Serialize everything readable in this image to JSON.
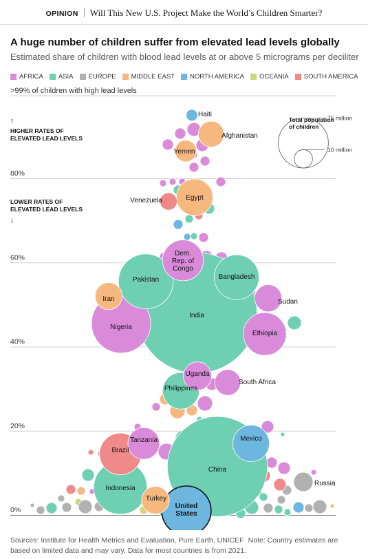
{
  "header": {
    "section": "OPINION",
    "headline": "Will This New U.S. Project Make the World’s Children Smarter?"
  },
  "chart_title": "A huge number of children suffer from elevated lead levels globally",
  "chart_subtitle": "Estimated share of children with blood lead levels at or above 5 micrograms per deciliter",
  "legend": [
    {
      "name": "AFRICA",
      "color": "#d98ad9"
    },
    {
      "name": "ASIA",
      "color": "#6fcfb2"
    },
    {
      "name": "EUROPE",
      "color": "#b1b1b1"
    },
    {
      "name": "MIDDLE EAST",
      "color": "#f7b87f"
    },
    {
      "name": "NORTH AMERICA",
      "color": "#6cb6e0"
    },
    {
      "name": "OCEANIA",
      "color": "#ccd67a"
    },
    {
      "name": "SOUTH AMERICA",
      "color": "#f08a8a"
    }
  ],
  "annotations": {
    "top_line": ">99% of children with high lead levels",
    "higher_arrow": "↑",
    "higher_line1": "HIGHER RATES OF",
    "higher_line2": "ELEVATED LEAD LEVELS",
    "lower_line1": "LOWER RATES OF",
    "lower_line2": "ELEVATED LEAD LEVELS",
    "lower_arrow": "↓"
  },
  "size_legend": {
    "title_line1": "Total population",
    "title_line2": "of children",
    "large_label": "75 million",
    "small_label": "10 million"
  },
  "footer": {
    "sources": "Sources: Institute for Health Metrics and Evaluation, Pure Earth, UNICEF",
    "note": "Note: Country estimates are based on limited data and may vary. Data for most countries is from 2021."
  },
  "chart_data": {
    "type": "scatter",
    "y_axis": {
      "ticks": [
        0,
        20,
        40,
        60,
        80
      ],
      "tick_labels": [
        "0%",
        "20%",
        "40%",
        "60%",
        "80%"
      ],
      "range": [
        0,
        100
      ]
    },
    "size_encoding": "total population of children (millions)",
    "labeled_countries": [
      {
        "name": "Haiti",
        "region": "NORTH AMERICA",
        "share": 95,
        "children_m": 4
      },
      {
        "name": "Afghanistan",
        "region": "MIDDLE EAST",
        "share": 90.5,
        "children_m": 20
      },
      {
        "name": "Yemen",
        "region": "MIDDLE EAST",
        "share": 86.5,
        "children_m": 14
      },
      {
        "name": "Venezuela",
        "region": "SOUTH AMERICA",
        "share": 74.5,
        "children_m": 9
      },
      {
        "name": "Egypt",
        "region": "MIDDLE EAST",
        "share": 75.5,
        "children_m": 40
      },
      {
        "name": "Dem. Rep. of Congo",
        "region": "AFRICA",
        "share": 60.5,
        "children_m": 50
      },
      {
        "name": "Pakistan",
        "region": "ASIA",
        "share": 55.5,
        "children_m": 90
      },
      {
        "name": "Bangladesh",
        "region": "ASIA",
        "share": 56.5,
        "children_m": 60
      },
      {
        "name": "Iran",
        "region": "MIDDLE EAST",
        "share": 52,
        "children_m": 22
      },
      {
        "name": "India",
        "region": "ASIA",
        "share": 48,
        "children_m": 435
      },
      {
        "name": "Sudan",
        "region": "AFRICA",
        "share": 51.5,
        "children_m": 22
      },
      {
        "name": "Nigeria",
        "region": "AFRICA",
        "share": 45.5,
        "children_m": 105
      },
      {
        "name": "Ethiopia",
        "region": "AFRICA",
        "share": 43,
        "children_m": 55
      },
      {
        "name": "Uganda",
        "region": "AFRICA",
        "share": 33,
        "children_m": 24
      },
      {
        "name": "South Africa",
        "region": "AFRICA",
        "share": 31.5,
        "children_m": 20
      },
      {
        "name": "Philippines",
        "region": "ASIA",
        "share": 29.5,
        "children_m": 40
      },
      {
        "name": "Tanzania",
        "region": "AFRICA",
        "share": 17,
        "children_m": 30
      },
      {
        "name": "Mexico",
        "region": "NORTH AMERICA",
        "share": 17,
        "children_m": 40
      },
      {
        "name": "Brazil",
        "region": "SOUTH AMERICA",
        "share": 14.5,
        "children_m": 52
      },
      {
        "name": "China",
        "region": "ASIA",
        "share": 11.5,
        "children_m": 300
      },
      {
        "name": "Indonesia",
        "region": "ASIA",
        "share": 6.5,
        "children_m": 85
      },
      {
        "name": "Russia",
        "region": "EUROPE",
        "share": 7,
        "children_m": 30
      },
      {
        "name": "Turkey",
        "region": "MIDDLE EAST",
        "share": 3.5,
        "children_m": 23
      },
      {
        "name": "United States",
        "region": "NORTH AMERICA",
        "share": 1,
        "children_m": 73
      }
    ]
  }
}
